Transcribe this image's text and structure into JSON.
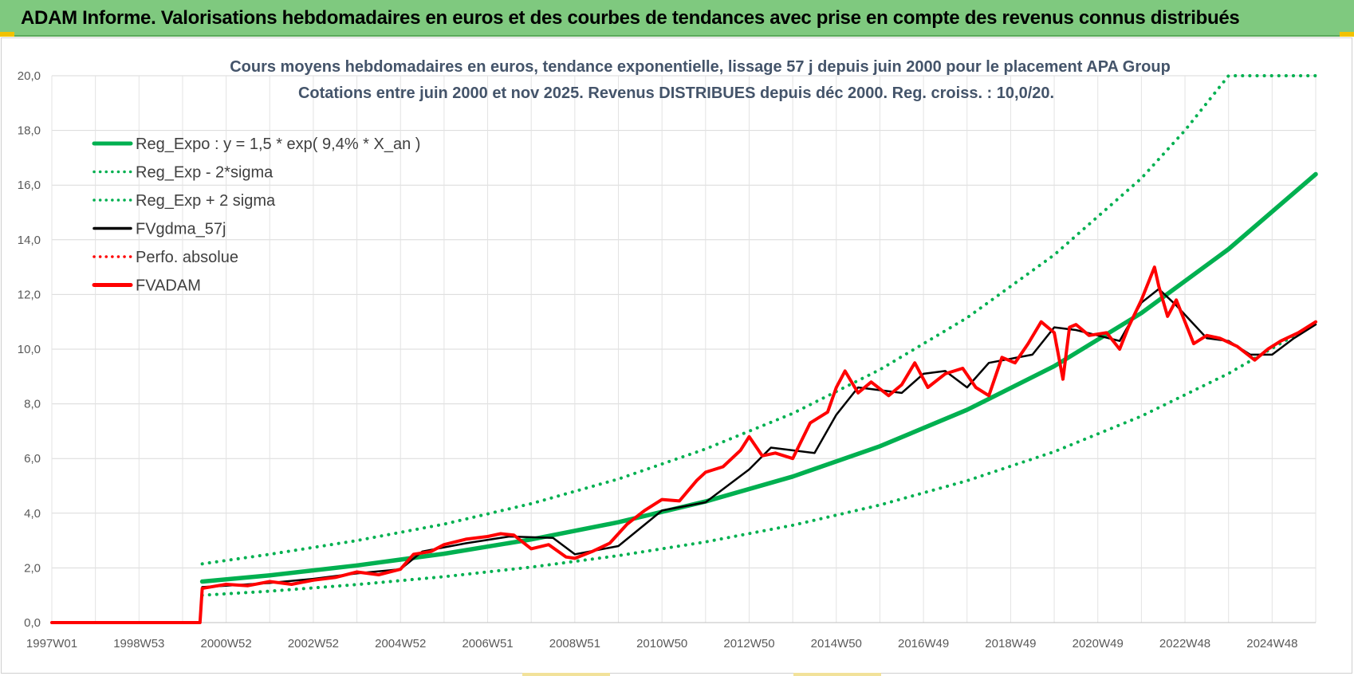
{
  "header": {
    "title": "ADAM Informe. Valorisations hebdomadaires en euros et des courbes de tendances avec prise en compte des revenus connus distribués"
  },
  "colors": {
    "header_bg": "#7fc97f",
    "reg_expo": "#00b050",
    "fvgdma": "#000000",
    "fvadam": "#ff0000",
    "perfo": "#ff0000"
  },
  "chart_data": {
    "type": "line",
    "title": "Cours moyens hebdomadaires en euros, tendance exponentielle, lissage 57 j depuis juin 2000 pour le placement APA Group",
    "subtitle": "Cotations entre juin 2000 et nov 2025. Revenus DISTRIBUES depuis déc 2000. Reg. croiss. : 10,0/20.",
    "xlabel": "",
    "ylabel": "",
    "ylim": [
      0,
      20
    ],
    "xlim": [
      1997.0,
      2026.0
    ],
    "grid": true,
    "legend_position": "top-left",
    "y_ticks": [
      "0,0",
      "2,0",
      "4,0",
      "6,0",
      "8,0",
      "10,0",
      "12,0",
      "14,0",
      "16,0",
      "18,0",
      "20,0"
    ],
    "x_ticks": [
      {
        "label": "1997W01",
        "x": 1997.0
      },
      {
        "label": "1998W53",
        "x": 1999.0
      },
      {
        "label": "2000W52",
        "x": 2001.0
      },
      {
        "label": "2002W52",
        "x": 2003.0
      },
      {
        "label": "2004W52",
        "x": 2005.0
      },
      {
        "label": "2006W51",
        "x": 2007.0
      },
      {
        "label": "2008W51",
        "x": 2009.0
      },
      {
        "label": "2010W50",
        "x": 2011.0
      },
      {
        "label": "2012W50",
        "x": 2013.0
      },
      {
        "label": "2014W50",
        "x": 2015.0
      },
      {
        "label": "2016W49",
        "x": 2017.0
      },
      {
        "label": "2018W49",
        "x": 2019.0
      },
      {
        "label": "2020W49",
        "x": 2021.0
      },
      {
        "label": "2022W48",
        "x": 2023.0
      },
      {
        "label": "2024W48",
        "x": 2025.0
      }
    ],
    "series": [
      {
        "name": "Reg_Expo : y = 1,5 * exp( 9,4% *  X_an )",
        "style": "solid-thick",
        "color": "#00b050",
        "x": [
          2000.45,
          2002,
          2004,
          2006,
          2008,
          2010,
          2012,
          2014,
          2016,
          2018,
          2020,
          2022,
          2024,
          2026.0
        ],
        "values": [
          1.5,
          1.73,
          2.09,
          2.52,
          3.04,
          3.67,
          4.43,
          5.34,
          6.45,
          7.78,
          9.38,
          11.32,
          13.66,
          16.4
        ]
      },
      {
        "name": "Reg_Exp - 2*sigma",
        "style": "dotted",
        "color": "#00b050",
        "x": [
          2000.45,
          2002,
          2004,
          2006,
          2008,
          2010,
          2012,
          2014,
          2016,
          2018,
          2020,
          2022,
          2024,
          2026.0
        ],
        "values": [
          1.0,
          1.15,
          1.39,
          1.68,
          2.03,
          2.45,
          2.95,
          3.56,
          4.3,
          5.19,
          6.25,
          7.55,
          9.11,
          10.95
        ]
      },
      {
        "name": "Reg_Exp + 2 sigma",
        "style": "dotted",
        "color": "#00b050",
        "x": [
          2000.45,
          2002,
          2004,
          2006,
          2008,
          2010,
          2012,
          2014,
          2016,
          2018,
          2020,
          2022,
          2023.0,
          2024,
          2026.0
        ],
        "values": [
          2.15,
          2.5,
          3.0,
          3.6,
          4.35,
          5.25,
          6.35,
          7.65,
          9.25,
          11.15,
          13.45,
          16.25,
          18.0,
          20.0,
          20.0
        ]
      },
      {
        "name": "FVgdma_57j",
        "style": "solid",
        "color": "#000000",
        "x": [
          1997.0,
          2000.4,
          2000.45,
          2001,
          2002,
          2003,
          2004,
          2005,
          2005.5,
          2006.5,
          2007.5,
          2008.5,
          2009.0,
          2010.0,
          2011.0,
          2012.0,
          2013.0,
          2013.5,
          2014.5,
          2015.0,
          2015.5,
          2016.5,
          2017.0,
          2017.5,
          2018.0,
          2018.5,
          2019.5,
          2020.0,
          2020.5,
          2021.0,
          2021.5,
          2022.0,
          2022.4,
          2022.8,
          2023.5,
          2024.0,
          2024.5,
          2025.0,
          2025.5,
          2026.0
        ],
        "values": [
          0,
          0,
          1.3,
          1.35,
          1.45,
          1.6,
          1.8,
          1.95,
          2.6,
          2.9,
          3.15,
          3.1,
          2.5,
          2.8,
          4.1,
          4.4,
          5.6,
          6.4,
          6.2,
          7.6,
          8.6,
          8.4,
          9.1,
          9.2,
          8.6,
          9.5,
          9.8,
          10.8,
          10.7,
          10.5,
          10.3,
          11.7,
          12.2,
          11.6,
          10.4,
          10.3,
          9.8,
          9.8,
          10.4,
          10.9
        ]
      },
      {
        "name": "Perfo. absolue",
        "style": "dotted",
        "color": "#ff0000",
        "x": [],
        "values": []
      },
      {
        "name": "FVADAM",
        "style": "solid-thick",
        "color": "#ff0000",
        "x": [
          1997.0,
          2000.4,
          2000.45,
          2001,
          2001.5,
          2002,
          2002.5,
          2003,
          2003.5,
          2004,
          2004.5,
          2005,
          2005.3,
          2005.7,
          2006.0,
          2006.5,
          2007.0,
          2007.3,
          2007.6,
          2008.0,
          2008.4,
          2008.8,
          2009.0,
          2009.4,
          2009.8,
          2010.2,
          2010.6,
          2011.0,
          2011.4,
          2011.8,
          2012.0,
          2012.4,
          2012.8,
          2013.0,
          2013.3,
          2013.6,
          2014.0,
          2014.4,
          2014.8,
          2015.0,
          2015.2,
          2015.5,
          2015.8,
          2016.2,
          2016.5,
          2016.8,
          2017.1,
          2017.5,
          2017.9,
          2018.2,
          2018.5,
          2018.8,
          2019.1,
          2019.4,
          2019.7,
          2020.0,
          2020.2,
          2020.35,
          2020.5,
          2020.8,
          2021.2,
          2021.5,
          2021.7,
          2022.0,
          2022.3,
          2022.4,
          2022.6,
          2022.8,
          2023.2,
          2023.5,
          2023.8,
          2024.2,
          2024.6,
          2024.9,
          2025.2,
          2025.6,
          2026.0
        ],
        "values": [
          0,
          0,
          1.25,
          1.4,
          1.35,
          1.5,
          1.4,
          1.55,
          1.65,
          1.85,
          1.75,
          1.95,
          2.5,
          2.6,
          2.85,
          3.05,
          3.15,
          3.25,
          3.2,
          2.7,
          2.85,
          2.4,
          2.35,
          2.6,
          2.9,
          3.6,
          4.1,
          4.5,
          4.45,
          5.2,
          5.5,
          5.7,
          6.3,
          6.8,
          6.1,
          6.2,
          6.0,
          7.3,
          7.7,
          8.6,
          9.2,
          8.4,
          8.8,
          8.3,
          8.7,
          9.5,
          8.6,
          9.1,
          9.3,
          8.6,
          8.3,
          9.7,
          9.5,
          10.2,
          11.0,
          10.6,
          8.9,
          10.8,
          10.9,
          10.5,
          10.6,
          10.0,
          10.8,
          11.8,
          13.0,
          12.3,
          11.2,
          11.8,
          10.2,
          10.5,
          10.4,
          10.1,
          9.6,
          10.0,
          10.3,
          10.6,
          11.0
        ]
      }
    ]
  }
}
